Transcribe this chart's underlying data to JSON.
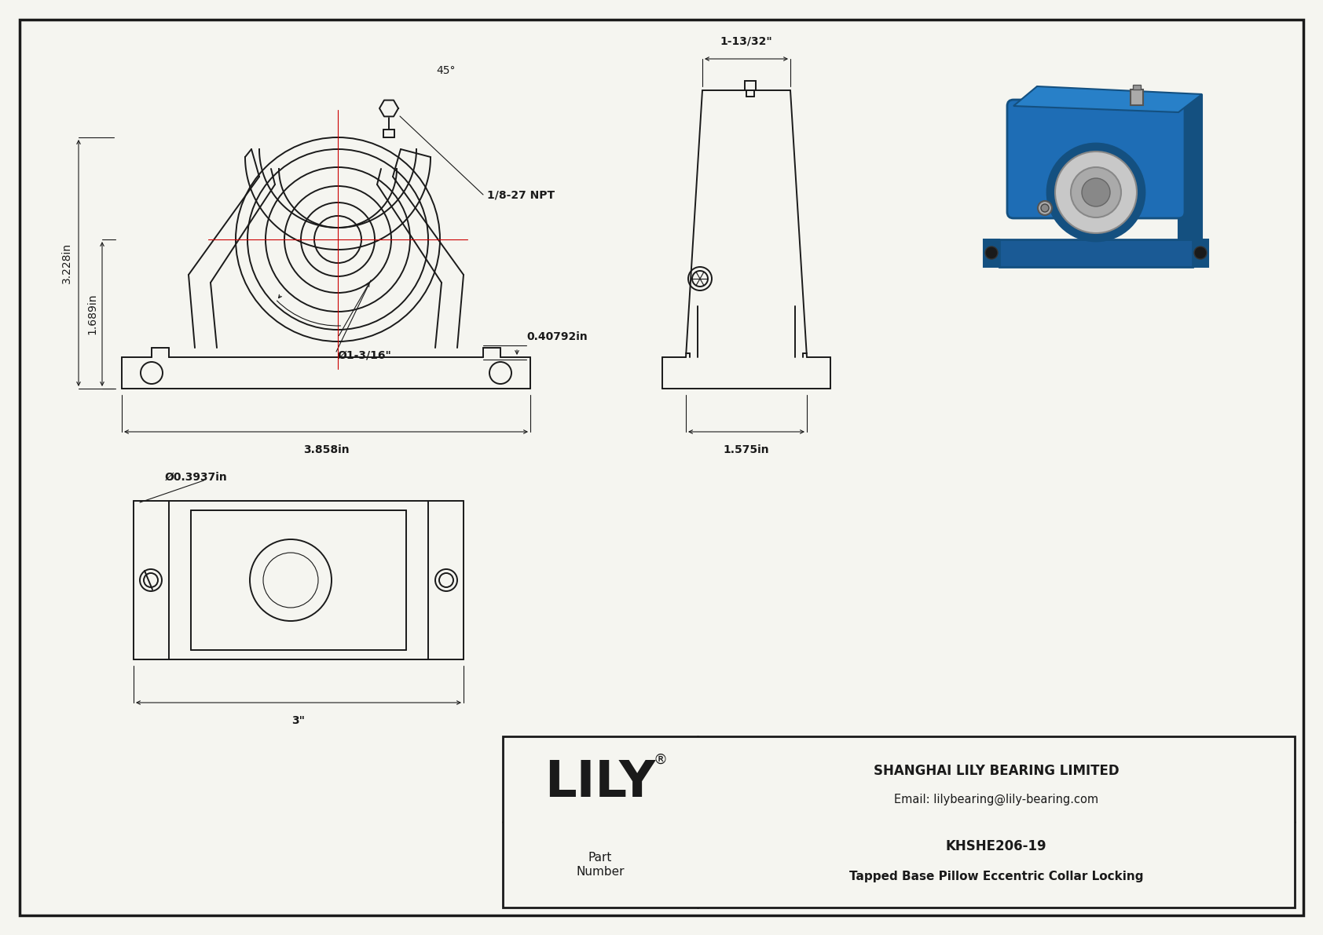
{
  "bg_color": "#f5f5f0",
  "line_color": "#1a1a1a",
  "red_color": "#cc0000",
  "title_box": {
    "lily_text": "LILY",
    "registered": "®",
    "company": "SHANGHAI LILY BEARING LIMITED",
    "email": "Email: lilybearing@lily-bearing.com",
    "part_label": "Part\nNumber",
    "part_number": "KHSHE206-19",
    "description": "Tapped Base Pillow Eccentric Collar Locking"
  },
  "dims": {
    "angle": "45°",
    "npt": "1/8-27 NPT",
    "height_total": "3.228in",
    "height_center": "1.689in",
    "width_total": "3.858in",
    "bore_dia": "Ø1-3/16\"",
    "bolt_dia": "Ø0.3937in",
    "side_width": "0.40792in",
    "side_depth": "1.575in",
    "top_width": "1-13/32\"",
    "bottom_width": "3\""
  }
}
